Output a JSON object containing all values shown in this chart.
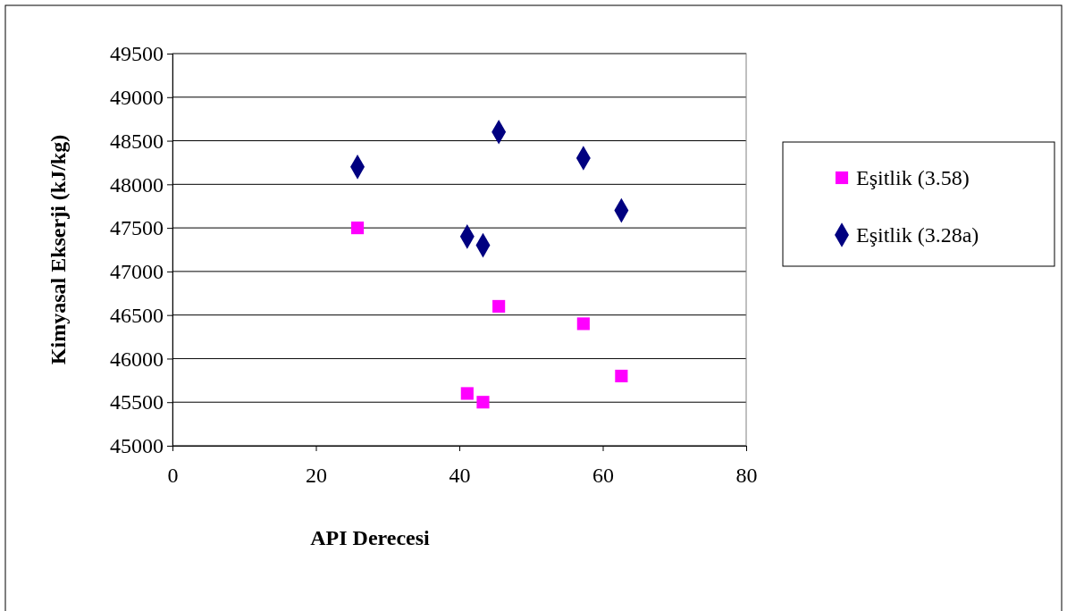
{
  "chart_data": {
    "type": "scatter",
    "xlabel": "API Derecesi",
    "ylabel": "Kimyasal Ekserji (kJ/kg)",
    "x": [
      25.8,
      41.1,
      43.3,
      45.5,
      57.3,
      62.6
    ],
    "series": [
      {
        "name": "Eşitlik (3.58)",
        "color": "#ff00ff",
        "marker": "square",
        "values": [
          47500,
          45600,
          45500,
          46600,
          46400,
          45800
        ]
      },
      {
        "name": "Eşitlik (3.28a)",
        "color": "#000080",
        "marker": "diamond",
        "values": [
          48200,
          47400,
          47300,
          48600,
          48300,
          47700
        ]
      }
    ],
    "xlim": [
      0,
      80
    ],
    "xticks": [
      0,
      20,
      40,
      60,
      80
    ],
    "ylim": [
      45000,
      49500
    ],
    "yticks": [
      45000,
      45500,
      46000,
      46500,
      47000,
      47500,
      48000,
      48500,
      49000,
      49500
    ],
    "grid": "y",
    "legend": "right"
  }
}
